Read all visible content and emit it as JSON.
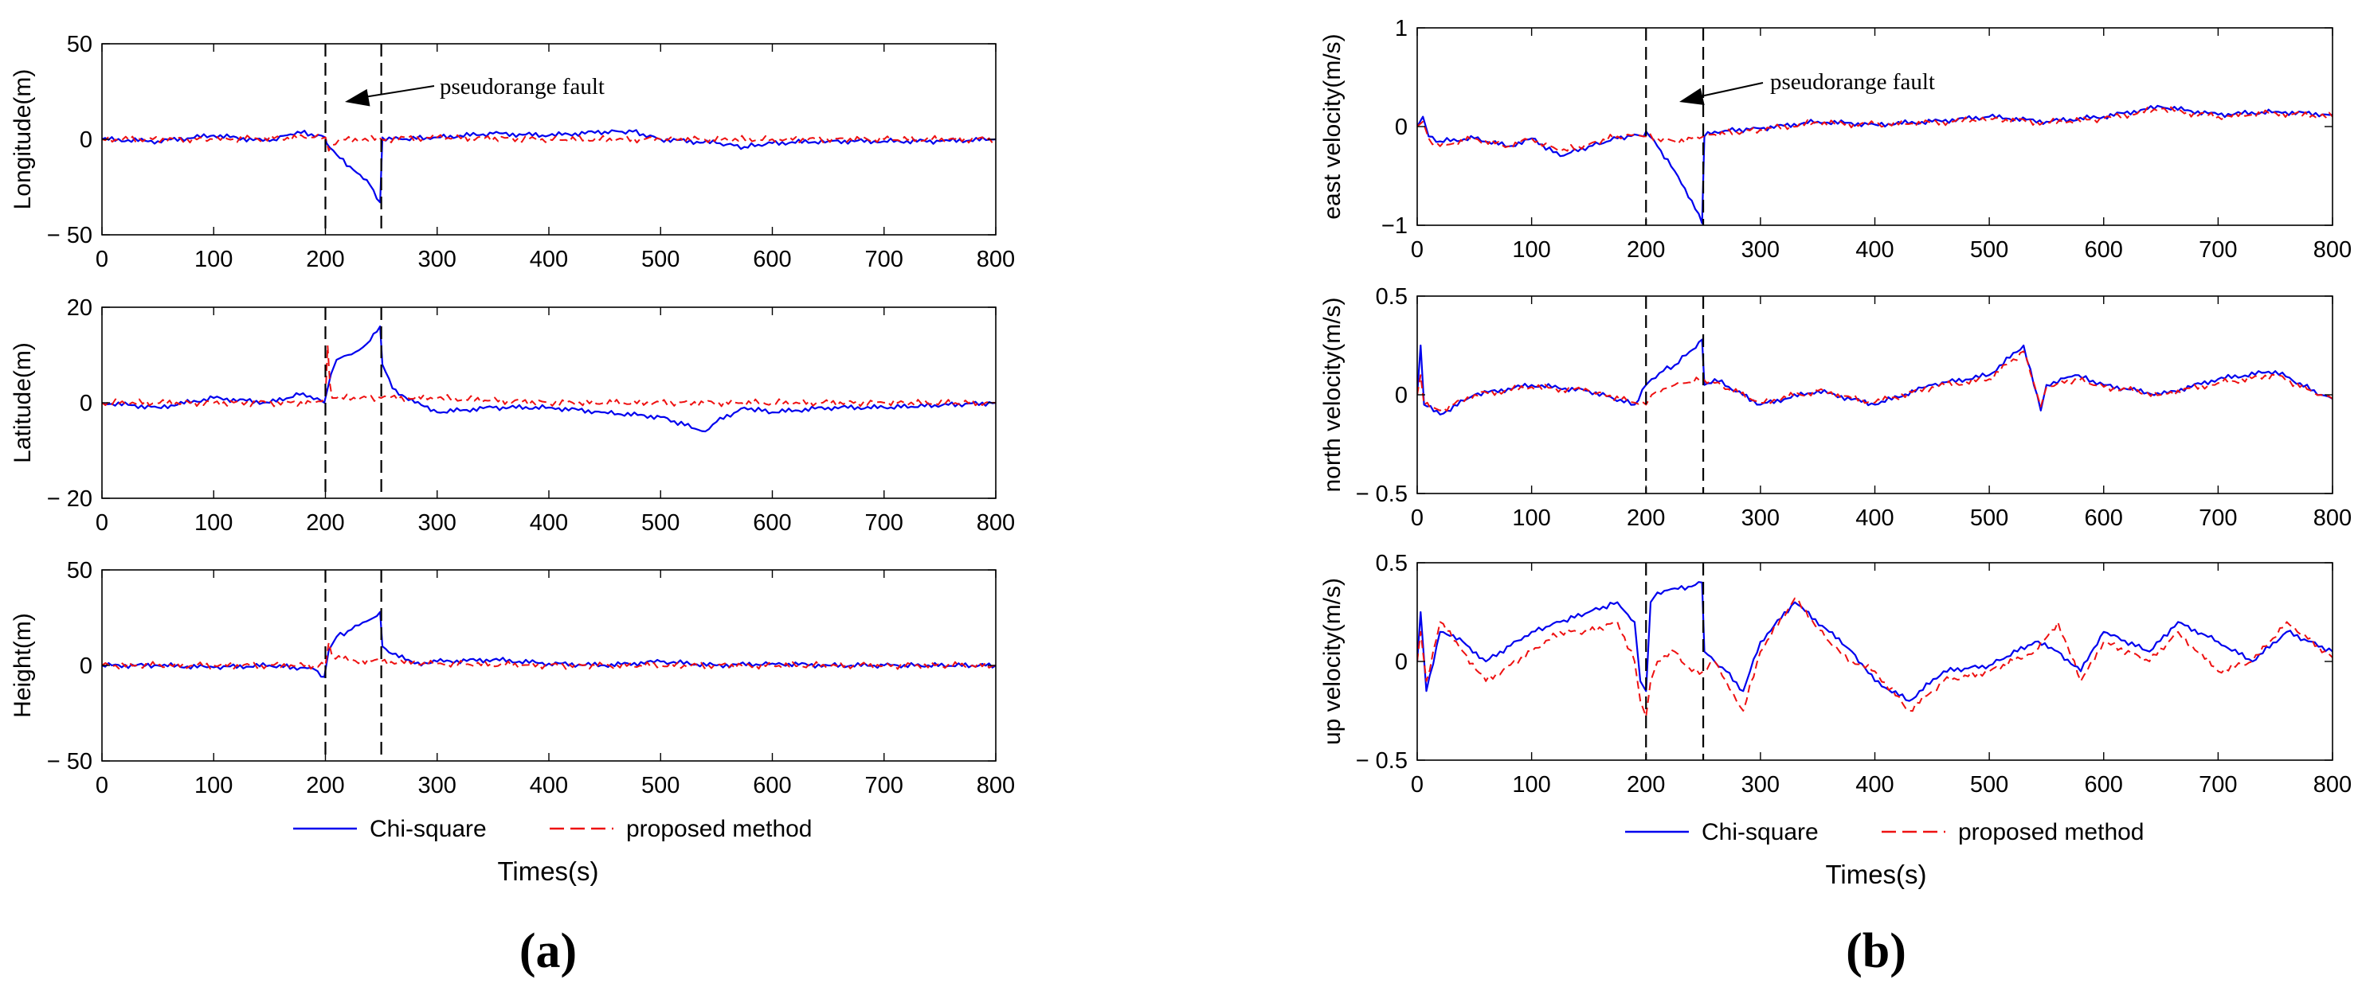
{
  "figure": {
    "x_ticks": [
      "0",
      "100",
      "200",
      "300",
      "400",
      "500",
      "600",
      "700",
      "800"
    ],
    "colors": {
      "chi": "#0000ee",
      "proposed": "#ee1111",
      "axis": "#000000"
    },
    "fault_lines_x": [
      200,
      250
    ],
    "panel_a": {
      "caption": "(a)",
      "xlabel": "Times(s)",
      "legend": {
        "chi": "Chi-square",
        "proposed": "proposed method"
      },
      "annotation": "pseudorange fault"
    },
    "panel_b": {
      "caption": "(b)",
      "xlabel": "Times(s)",
      "legend": {
        "chi": "Chi-square",
        "proposed": "proposed method"
      },
      "annotation": "pseudorange fault"
    }
  },
  "chart_data": [
    {
      "type": "line",
      "id": "lon",
      "panel": "a",
      "ylabel": "Longitude(m)",
      "xlim": [
        0,
        800
      ],
      "ylim": [
        -50,
        50
      ],
      "y_ticks": [
        "50",
        "0",
        "− 50"
      ],
      "y_tick_values": [
        50,
        0,
        -50
      ],
      "series": [
        {
          "name": "Chi-square",
          "x": [
            0,
            50,
            100,
            150,
            175,
            200,
            201,
            210,
            225,
            240,
            249,
            251,
            260,
            300,
            350,
            400,
            450,
            475,
            500,
            550,
            575,
            600,
            650,
            700,
            750,
            800
          ],
          "y": [
            0,
            -1,
            2,
            -1,
            4,
            1,
            -2,
            -8,
            -16,
            -24,
            -33,
            1,
            0,
            1,
            3,
            2,
            4,
            4,
            0,
            -2,
            -4,
            -2,
            -1,
            -1,
            -1,
            0
          ]
        },
        {
          "name": "proposed method",
          "x": [
            0,
            100,
            190,
            200,
            203,
            206,
            215,
            250,
            300,
            400,
            500,
            600,
            700,
            800
          ],
          "y": [
            0,
            0,
            1,
            1,
            -6,
            -3,
            0,
            0,
            1,
            0,
            0,
            0,
            0,
            0
          ]
        }
      ]
    },
    {
      "type": "line",
      "id": "lat",
      "panel": "a",
      "ylabel": "Latitude(m)",
      "xlim": [
        0,
        800
      ],
      "ylim": [
        -20,
        20
      ],
      "y_ticks": [
        "20",
        "0",
        "− 20"
      ],
      "y_tick_values": [
        20,
        0,
        -20
      ],
      "series": [
        {
          "name": "Chi-square",
          "x": [
            0,
            50,
            100,
            150,
            180,
            199,
            201,
            205,
            210,
            220,
            230,
            240,
            249,
            251,
            260,
            280,
            300,
            350,
            400,
            450,
            500,
            540,
            550,
            575,
            600,
            650,
            700,
            800
          ],
          "y": [
            0,
            -1,
            1,
            0,
            2,
            0,
            2,
            6,
            9,
            10,
            11,
            13,
            16,
            8,
            3,
            0,
            -2,
            -1,
            -1,
            -2,
            -3,
            -6,
            -4,
            -1,
            -2,
            -1,
            -1,
            0
          ]
        },
        {
          "name": "proposed method",
          "x": [
            0,
            100,
            190,
            200,
            202,
            204,
            206,
            210,
            250,
            300,
            400,
            500,
            600,
            700,
            800
          ],
          "y": [
            0,
            0,
            0,
            1,
            12,
            4,
            1,
            1,
            1,
            1,
            0,
            0,
            0,
            0,
            0
          ]
        }
      ]
    },
    {
      "type": "line",
      "id": "hgt",
      "panel": "a",
      "ylabel": "Height(m)",
      "xlim": [
        0,
        800
      ],
      "ylim": [
        -50,
        50
      ],
      "y_ticks": [
        "50",
        "0",
        "− 50"
      ],
      "y_tick_values": [
        50,
        0,
        -50
      ],
      "series": [
        {
          "name": "Chi-square",
          "x": [
            0,
            50,
            100,
            150,
            190,
            199,
            203,
            210,
            220,
            230,
            240,
            249,
            251,
            260,
            280,
            300,
            350,
            400,
            450,
            500,
            550,
            600,
            650,
            700,
            800
          ],
          "y": [
            0,
            0,
            -1,
            0,
            -2,
            -6,
            8,
            15,
            18,
            21,
            24,
            28,
            10,
            6,
            1,
            2,
            3,
            1,
            0,
            2,
            0,
            1,
            0,
            0,
            0
          ]
        },
        {
          "name": "proposed method",
          "x": [
            0,
            100,
            190,
            200,
            203,
            206,
            215,
            250,
            300,
            400,
            500,
            600,
            700,
            800
          ],
          "y": [
            0,
            0,
            0,
            0,
            12,
            5,
            3,
            2,
            1,
            0,
            0,
            0,
            0,
            0
          ]
        }
      ]
    },
    {
      "type": "line",
      "id": "ev",
      "panel": "b",
      "ylabel": "east velocity(m/s)",
      "xlim": [
        0,
        800
      ],
      "ylim": [
        -1,
        1
      ],
      "y_ticks": [
        "1",
        "0",
        "−1"
      ],
      "y_tick_values": [
        1,
        0,
        -1
      ],
      "series": [
        {
          "name": "Chi-square",
          "x": [
            0,
            5,
            10,
            20,
            50,
            80,
            100,
            125,
            150,
            175,
            190,
            198,
            200,
            210,
            225,
            240,
            249,
            251,
            260,
            300,
            350,
            400,
            450,
            500,
            550,
            600,
            650,
            700,
            750,
            800
          ],
          "y": [
            0,
            0.1,
            -0.1,
            -0.15,
            -0.12,
            -0.2,
            -0.12,
            -0.3,
            -0.2,
            -0.12,
            -0.08,
            -0.1,
            -0.05,
            -0.2,
            -0.45,
            -0.75,
            -0.98,
            -0.1,
            -0.05,
            -0.02,
            0.05,
            0.02,
            0.05,
            0.1,
            0.05,
            0.1,
            0.2,
            0.12,
            0.15,
            0.12
          ]
        },
        {
          "name": "proposed method",
          "x": [
            0,
            5,
            10,
            20,
            50,
            80,
            100,
            125,
            150,
            175,
            190,
            198,
            200,
            210,
            225,
            240,
            250,
            260,
            300,
            350,
            400,
            450,
            500,
            550,
            600,
            650,
            700,
            750,
            800
          ],
          "y": [
            0,
            0.05,
            -0.12,
            -0.2,
            -0.12,
            -0.2,
            -0.12,
            -0.25,
            -0.18,
            -0.1,
            -0.08,
            -0.1,
            -0.1,
            -0.12,
            -0.15,
            -0.12,
            -0.1,
            -0.08,
            -0.03,
            0.04,
            0.02,
            0.04,
            0.08,
            0.04,
            0.08,
            0.18,
            0.1,
            0.14,
            0.1
          ]
        }
      ]
    },
    {
      "type": "line",
      "id": "nv",
      "panel": "b",
      "ylabel": "north velocity(m/s)",
      "xlim": [
        0,
        800
      ],
      "ylim": [
        -0.5,
        0.5
      ],
      "y_ticks": [
        "0.5",
        "0",
        "− 0.5"
      ],
      "y_tick_values": [
        0.5,
        0,
        -0.5
      ],
      "series": [
        {
          "name": "Chi-square",
          "x": [
            0,
            3,
            6,
            20,
            50,
            100,
            150,
            190,
            200,
            205,
            215,
            225,
            235,
            249,
            251,
            260,
            300,
            350,
            400,
            450,
            500,
            530,
            545,
            550,
            575,
            600,
            650,
            700,
            750,
            790,
            800
          ],
          "y": [
            0,
            0.25,
            -0.05,
            -0.1,
            0,
            0.05,
            0.02,
            -0.05,
            0.05,
            0.08,
            0.12,
            0.15,
            0.2,
            0.28,
            0.05,
            0.08,
            -0.05,
            0.02,
            -0.05,
            0.05,
            0.1,
            0.25,
            -0.08,
            0.05,
            0.1,
            0.05,
            0,
            0.08,
            0.12,
            0,
            -0.02
          ]
        },
        {
          "name": "proposed method",
          "x": [
            0,
            3,
            6,
            20,
            50,
            100,
            150,
            190,
            200,
            205,
            215,
            225,
            235,
            250,
            260,
            300,
            350,
            400,
            450,
            500,
            530,
            545,
            550,
            575,
            600,
            650,
            700,
            750,
            790,
            800
          ],
          "y": [
            0,
            0.1,
            -0.05,
            -0.08,
            0,
            0.04,
            0.02,
            -0.04,
            -0.05,
            0,
            0.03,
            0.05,
            0.06,
            0.08,
            0.06,
            -0.04,
            0.02,
            -0.04,
            0.04,
            0.08,
            0.22,
            -0.06,
            0.04,
            0.08,
            0.04,
            0,
            0.06,
            0.1,
            0,
            -0.02
          ]
        }
      ]
    },
    {
      "type": "line",
      "id": "uv",
      "panel": "b",
      "ylabel": "up velocity(m/s)",
      "xlim": [
        0,
        800
      ],
      "ylim": [
        -0.5,
        0.5
      ],
      "y_ticks": [
        "0.5",
        "0",
        "− 0.5"
      ],
      "y_tick_values": [
        0.5,
        0,
        -0.5
      ],
      "series": [
        {
          "name": "Chi-square",
          "x": [
            0,
            3,
            8,
            20,
            40,
            60,
            100,
            125,
            150,
            175,
            190,
            195,
            200,
            204,
            210,
            225,
            240,
            249,
            251,
            260,
            270,
            285,
            300,
            330,
            360,
            380,
            400,
            430,
            460,
            500,
            540,
            560,
            580,
            600,
            640,
            665,
            700,
            730,
            760,
            800
          ],
          "y": [
            0,
            0.25,
            -0.15,
            0.15,
            0.1,
            0.0,
            0.15,
            0.2,
            0.25,
            0.3,
            0.2,
            -0.1,
            -0.15,
            0.3,
            0.35,
            0.37,
            0.38,
            0.4,
            0.05,
            0.0,
            -0.05,
            -0.15,
            0.1,
            0.3,
            0.15,
            0.05,
            -0.1,
            -0.2,
            -0.05,
            -0.02,
            0.1,
            0.05,
            -0.05,
            0.15,
            0.05,
            0.2,
            0.1,
            0.0,
            0.15,
            0.05
          ]
        },
        {
          "name": "proposed method",
          "x": [
            0,
            3,
            8,
            20,
            40,
            60,
            100,
            125,
            150,
            175,
            190,
            195,
            200,
            204,
            210,
            225,
            240,
            250,
            260,
            270,
            285,
            300,
            330,
            360,
            380,
            400,
            430,
            460,
            500,
            540,
            560,
            580,
            600,
            640,
            665,
            700,
            730,
            760,
            800
          ],
          "y": [
            0,
            0.15,
            -0.1,
            0.2,
            0.05,
            -0.1,
            0.05,
            0.15,
            0.15,
            0.2,
            0.0,
            -0.2,
            -0.28,
            -0.1,
            0.0,
            0.05,
            -0.05,
            -0.05,
            0.0,
            -0.1,
            -0.25,
            0.05,
            0.32,
            0.1,
            0.0,
            -0.05,
            -0.25,
            -0.1,
            -0.05,
            0.05,
            0.2,
            -0.1,
            0.1,
            0.0,
            0.15,
            -0.05,
            0.0,
            0.2,
            0.02
          ]
        }
      ]
    }
  ]
}
